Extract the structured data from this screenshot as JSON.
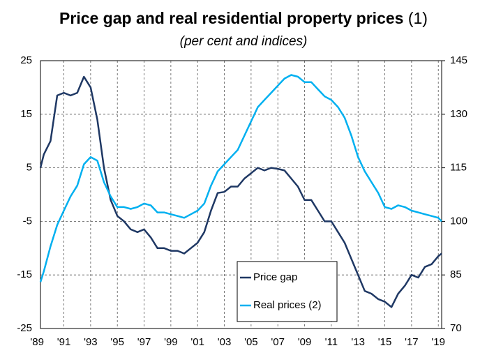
{
  "chart_data": {
    "type": "line",
    "title": "Price gap and real residential property prices",
    "title_note": "(1)",
    "subtitle": "(per cent and indices)",
    "x": [
      1989.25,
      1989.5,
      1990,
      1990.5,
      1991,
      1991.5,
      1992,
      1992.5,
      1993,
      1993.5,
      1994,
      1994.5,
      1995,
      1995.5,
      1996,
      1996.5,
      1997,
      1997.5,
      1998,
      1998.5,
      1999,
      1999.5,
      2000,
      2000.5,
      2001,
      2001.5,
      2002,
      2002.5,
      2003,
      2003.5,
      2004,
      2004.5,
      2005,
      2005.5,
      2006,
      2006.5,
      2007,
      2007.5,
      2008,
      2008.5,
      2009,
      2009.5,
      2010,
      2010.5,
      2011,
      2011.5,
      2012,
      2012.5,
      2013,
      2013.5,
      2014,
      2014.5,
      2015,
      2015.5,
      2016,
      2016.5,
      2017,
      2017.5,
      2018,
      2018.5,
      2019,
      2019.25
    ],
    "series": [
      {
        "name": "Price gap",
        "color": "#1f3864",
        "axis": "y",
        "values": [
          5,
          7.5,
          10,
          18.5,
          19,
          18.5,
          19,
          22,
          20,
          14,
          5,
          -1,
          -4,
          -5,
          -6.5,
          -7,
          -6.5,
          -8,
          -10,
          -10,
          -10.5,
          -10.5,
          -11,
          -10,
          -9,
          -7,
          -3,
          0.3,
          0.5,
          1.5,
          1.5,
          3,
          4,
          5,
          4.5,
          5,
          4.8,
          4.5,
          3,
          1.5,
          -1,
          -1,
          -3,
          -5,
          -5,
          -7,
          -9,
          -12,
          -15,
          -18,
          -18.5,
          -19.5,
          -20,
          -21,
          -18.5,
          -17,
          -15,
          -15.5,
          -13.5,
          -13,
          -11.5,
          -11
        ]
      },
      {
        "name": "Real prices (2)",
        "color": "#00b0f0",
        "axis": "y2",
        "values": [
          83,
          86,
          93,
          99,
          103,
          107,
          110,
          116,
          118,
          117,
          111,
          107,
          104,
          104,
          103.5,
          104,
          105,
          104.5,
          102.5,
          102.5,
          102,
          101.5,
          101,
          102,
          103,
          105,
          110,
          114,
          116,
          118,
          120,
          124,
          128,
          132,
          134,
          136,
          138,
          140,
          141,
          140.5,
          139,
          139,
          137,
          135,
          134,
          132,
          129,
          124,
          118,
          114,
          111,
          108,
          104,
          103.5,
          104.5,
          104,
          103,
          102.5,
          102,
          101.5,
          101,
          100
        ]
      }
    ],
    "xlim": [
      1989.25,
      2019.25
    ],
    "xticks": [
      {
        "value": 1989,
        "label": "'89"
      },
      {
        "value": 1991,
        "label": "'91"
      },
      {
        "value": 1993,
        "label": "'93"
      },
      {
        "value": 1995,
        "label": "'95"
      },
      {
        "value": 1997,
        "label": "'97"
      },
      {
        "value": 1999,
        "label": "'99"
      },
      {
        "value": 2001,
        "label": "'01"
      },
      {
        "value": 2003,
        "label": "'03"
      },
      {
        "value": 2005,
        "label": "'05"
      },
      {
        "value": 2007,
        "label": "'07"
      },
      {
        "value": 2009,
        "label": "'09"
      },
      {
        "value": 2011,
        "label": "'11"
      },
      {
        "value": 2013,
        "label": "'13"
      },
      {
        "value": 2015,
        "label": "'15"
      },
      {
        "value": 2017,
        "label": "'17"
      },
      {
        "value": 2019,
        "label": "'19"
      }
    ],
    "ylim": [
      -25,
      25
    ],
    "yticks": [
      25,
      15,
      5,
      -5,
      -15,
      -25
    ],
    "y2lim": [
      70,
      145
    ],
    "y2ticks": [
      145,
      130,
      115,
      100,
      85,
      70
    ],
    "grid": true
  }
}
